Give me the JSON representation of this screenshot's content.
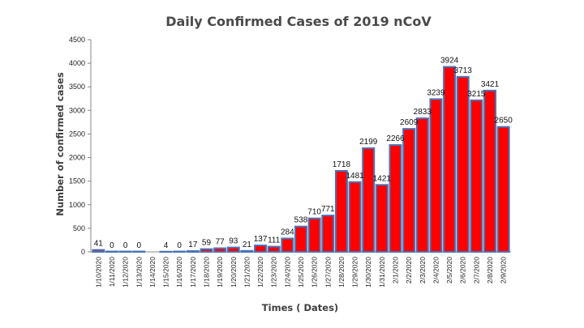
{
  "chart_data": {
    "type": "bar",
    "title": "Daily Confirmed Cases of 2019 nCoV",
    "xlabel": "Times ( Dates)",
    "ylabel": "Number of confirmed cases",
    "ylim": [
      0,
      4500
    ],
    "yticks": [
      0,
      500,
      1000,
      1500,
      2000,
      2500,
      3000,
      3500,
      4000,
      4500
    ],
    "categories": [
      "1/10/2020",
      "1/11/2020",
      "1/12/2020",
      "1/13/2020",
      "1/14/2020",
      "1/15/2020",
      "1/16/2020",
      "1/17/2020",
      "1/18/2020",
      "1/19/2020",
      "1/20/2020",
      "1/21/2020",
      "1/22/2020",
      "1/23/2020",
      "1/24/2020",
      "1/25/2020",
      "1/26/2020",
      "1/27/2020",
      "1/28/2020",
      "1/29/2020",
      "1/30/2020",
      "1/31/2020",
      "2/1/2020",
      "2/2/2020",
      "2/3/2020",
      "2/4/2020",
      "2/5/2020",
      "2/6/2020",
      "2/7/2020",
      "2/8/2020",
      "2/9/2020"
    ],
    "values": [
      41,
      0,
      0,
      0,
      null,
      4,
      0,
      17,
      59,
      77,
      93,
      21,
      137,
      111,
      284,
      538,
      710,
      771,
      1718,
      1481,
      2199,
      1421,
      2266,
      2609,
      2833,
      3239,
      3924,
      3713,
      3215,
      3421,
      2650
    ],
    "data_labels": [
      "41",
      "0",
      "0",
      "0",
      "",
      "4",
      "0",
      "17",
      "59",
      "77",
      "93",
      "21",
      "137",
      "111",
      "284",
      "538",
      "710",
      "771",
      "1718",
      "1481",
      "2199",
      "1421",
      "2266",
      "2609",
      "2833",
      "3239",
      "3924",
      "3713",
      "3215",
      "3421",
      "2650"
    ],
    "grid": false,
    "legend": "none",
    "colors": {
      "bar_fill": "#ff0000",
      "bar_edge": "#4a74b8"
    }
  }
}
